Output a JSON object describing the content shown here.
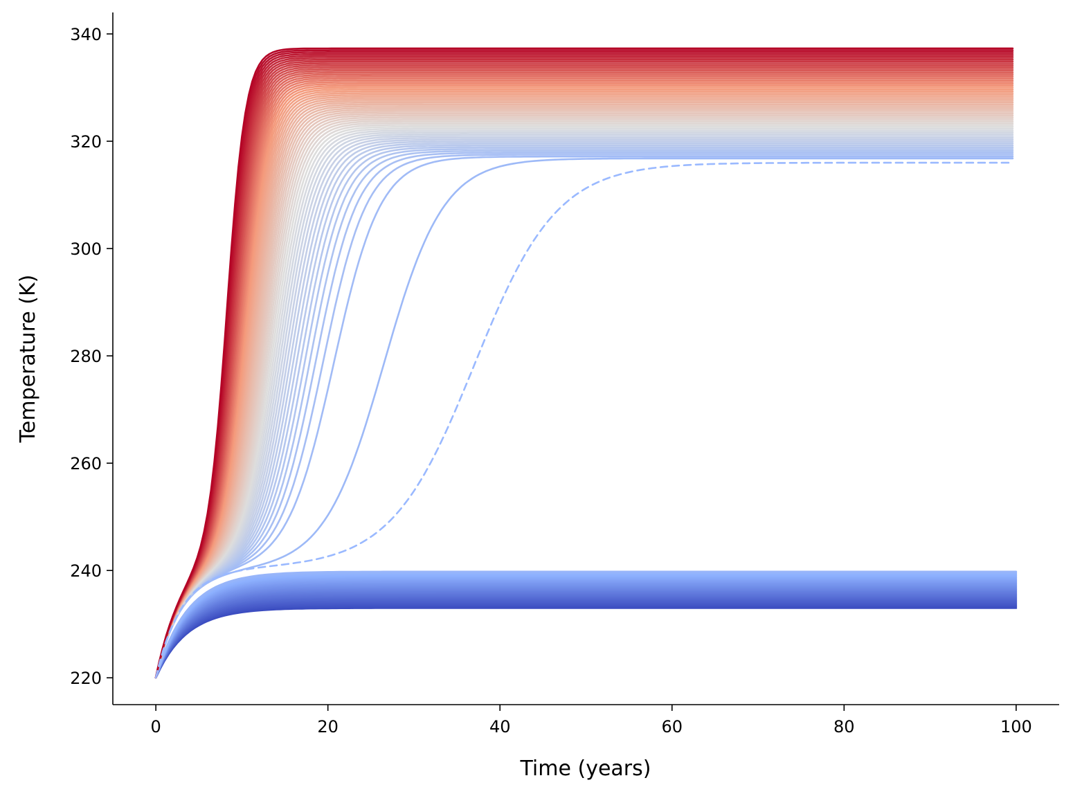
{
  "chart_data": {
    "type": "line",
    "title": "",
    "xlabel": "Time (years)",
    "ylabel": "Temperature (K)",
    "xlim": [
      -5,
      105
    ],
    "ylim": [
      215,
      344
    ],
    "xticks": [
      0,
      20,
      40,
      60,
      80,
      100
    ],
    "yticks": [
      220,
      240,
      260,
      280,
      300,
      320,
      340
    ],
    "grid": false,
    "legend": "none",
    "colormap": "coolwarm",
    "colormap_stops": [
      "#3b4cc0",
      "#8db0fe",
      "#dddddd",
      "#f49a7b",
      "#b40426"
    ],
    "time_range": [
      0,
      100
    ],
    "initial_temperature": 220,
    "cold_branch": {
      "description_equilibria_K": [
        233,
        240
      ],
      "equilibrium_start": 233.0,
      "equilibrium_end": 239.8,
      "count": 30,
      "color_range": [
        0.0,
        0.28
      ]
    },
    "critical_curve": {
      "style": "dashed",
      "color": "#9ab9ff",
      "equilibrium": 316.0,
      "transition_year": 37,
      "plateau": 240.5
    },
    "warm_branch": {
      "equilibrium_start": 316.8,
      "equilibrium_end": 337.3,
      "count": 60,
      "color_range": [
        0.3,
        1.0
      ],
      "transition_years": [
        26.5,
        8.3
      ]
    }
  }
}
